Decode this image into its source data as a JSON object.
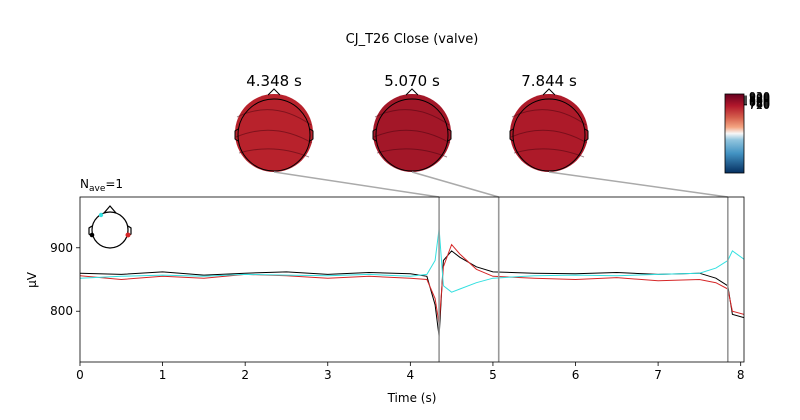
{
  "chart_data": {
    "type": "line",
    "title": "CJ_T26 Close (valve)",
    "nave_label": "N",
    "nave_sub": "ave",
    "nave_value": "=1",
    "xlabel": "Time (s)",
    "ylabel": "µV",
    "xlim": [
      0,
      8.04
    ],
    "ylim": [
      720,
      980
    ],
    "xticks": [
      0,
      1,
      2,
      3,
      4,
      5,
      6,
      7,
      8
    ],
    "xtick_labels": [
      "0",
      "1",
      "2",
      "3",
      "4",
      "5",
      "6",
      "7",
      "8"
    ],
    "yticks": [
      800,
      900
    ],
    "ytick_labels": [
      "800",
      "900"
    ],
    "grid": false,
    "series": [
      {
        "color": "#000000",
        "x": [
          0,
          0.5,
          1.0,
          1.5,
          2.0,
          2.5,
          3.0,
          3.5,
          4.0,
          4.2,
          4.3,
          4.348,
          4.4,
          4.5,
          4.6,
          4.8,
          5.0,
          5.5,
          6.0,
          6.5,
          7.0,
          7.5,
          7.7,
          7.844,
          7.9,
          8.04
        ],
        "y": [
          860,
          858,
          862,
          857,
          860,
          862,
          858,
          861,
          859,
          855,
          810,
          760,
          880,
          895,
          885,
          870,
          862,
          860,
          859,
          861,
          858,
          860,
          852,
          840,
          795,
          790
        ]
      },
      {
        "color": "#d62728",
        "x": [
          0,
          0.5,
          1.0,
          1.5,
          2.0,
          2.5,
          3.0,
          3.5,
          4.0,
          4.2,
          4.3,
          4.348,
          4.4,
          4.5,
          4.6,
          4.8,
          5.0,
          5.5,
          6.0,
          6.5,
          7.0,
          7.5,
          7.7,
          7.844,
          7.9,
          8.04
        ],
        "y": [
          856,
          850,
          855,
          852,
          858,
          856,
          852,
          855,
          852,
          850,
          820,
          780,
          870,
          905,
          890,
          866,
          855,
          852,
          850,
          853,
          848,
          850,
          845,
          835,
          800,
          795
        ]
      },
      {
        "color": "#33e0e0",
        "x": [
          0,
          0.5,
          1.0,
          1.5,
          2.0,
          2.5,
          3.0,
          3.5,
          4.0,
          4.2,
          4.3,
          4.348,
          4.4,
          4.5,
          4.6,
          4.8,
          5.0,
          5.5,
          6.0,
          6.5,
          7.0,
          7.5,
          7.7,
          7.844,
          7.9,
          8.04
        ],
        "y": [
          852,
          855,
          857,
          855,
          858,
          857,
          856,
          858,
          855,
          858,
          880,
          930,
          840,
          830,
          835,
          845,
          852,
          856,
          857,
          856,
          858,
          860,
          868,
          880,
          895,
          882
        ]
      }
    ],
    "topomaps": [
      {
        "time": 4.348,
        "label": "4.348 s",
        "color": "#b8222c"
      },
      {
        "time": 5.07,
        "label": "5.070 s",
        "color": "#a31728"
      },
      {
        "time": 7.844,
        "label": "7.844 s",
        "color": "#ad1a29"
      }
    ],
    "colorbar": {
      "tick_labels": [
        "920",
        "900",
        "880",
        "860",
        "840",
        "820",
        "800",
        "780",
        "760",
        "740",
        "720"
      ],
      "colors": [
        "#67001f",
        "#b2182b",
        "#d6604d",
        "#f4a582",
        "#fddbc7",
        "#f7f7f7",
        "#d1e5f0",
        "#92c5de",
        "#4393c3",
        "#2166ac",
        "#053061"
      ]
    }
  }
}
